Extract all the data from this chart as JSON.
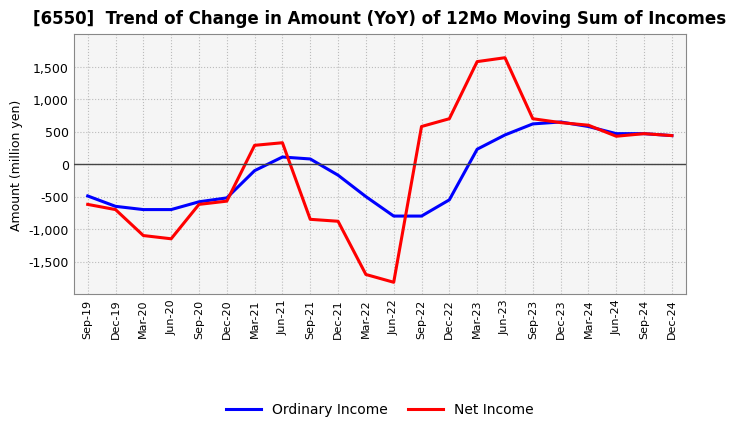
{
  "title": "[6550]  Trend of Change in Amount (YoY) of 12Mo Moving Sum of Incomes",
  "ylabel": "Amount (million yen)",
  "xlabels": [
    "Sep-19",
    "Dec-19",
    "Mar-20",
    "Jun-20",
    "Sep-20",
    "Dec-20",
    "Mar-21",
    "Jun-21",
    "Sep-21",
    "Dec-21",
    "Mar-22",
    "Jun-22",
    "Sep-22",
    "Dec-22",
    "Mar-23",
    "Jun-23",
    "Sep-23",
    "Dec-23",
    "Mar-24",
    "Jun-24",
    "Sep-24",
    "Dec-24"
  ],
  "ordinary_income": [
    -490,
    -650,
    -700,
    -700,
    -580,
    -520,
    -100,
    110,
    80,
    -170,
    -500,
    -800,
    -800,
    -550,
    230,
    450,
    620,
    650,
    580,
    470,
    470,
    440
  ],
  "net_income": [
    -620,
    -700,
    -1100,
    -1150,
    -620,
    -570,
    290,
    330,
    -850,
    -880,
    -1700,
    -1820,
    580,
    700,
    1580,
    1640,
    700,
    640,
    600,
    430,
    470,
    440
  ],
  "ordinary_color": "#0000ff",
  "net_color": "#ff0000",
  "ylim": [
    -2000,
    2000
  ],
  "yticks": [
    -1500,
    -1000,
    -500,
    0,
    500,
    1000,
    1500
  ],
  "bg_color": "#ffffff",
  "plot_bg_color": "#f5f5f5",
  "grid_color": "#bbbbbb",
  "legend_labels": [
    "Ordinary Income",
    "Net Income"
  ],
  "line_width": 2.2,
  "title_fontsize": 12,
  "axis_fontsize": 9,
  "tick_fontsize": 9,
  "xlabel_fontsize": 8
}
